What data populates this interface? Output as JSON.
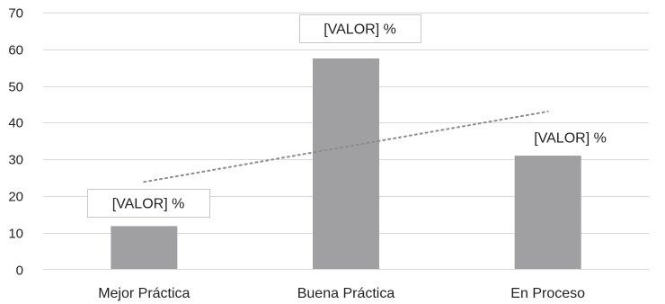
{
  "chart_data": {
    "type": "bar",
    "categories": [
      "Mejor Práctica",
      "Buena Práctica",
      "En Proceso"
    ],
    "values": [
      11.8,
      57.5,
      31
    ],
    "data_labels": [
      "[VALOR] %",
      "[VALOR] %",
      "[VALOR] %"
    ],
    "ylim": [
      0,
      70
    ],
    "yticks": [
      "0",
      "10",
      "20",
      "30",
      "40",
      "50",
      "60",
      "70"
    ],
    "grid": true,
    "trendline": {
      "type": "linear",
      "style": "dotted"
    },
    "colors": {
      "bar": "#a0a0a2",
      "grid": "#d9d9d9",
      "trend": "#8c8c8c",
      "label_border": "#c8c8c8"
    }
  }
}
